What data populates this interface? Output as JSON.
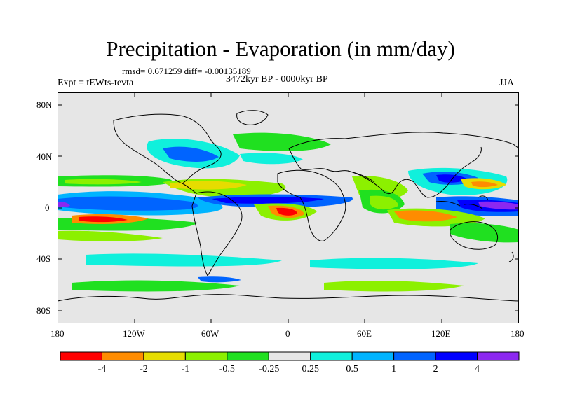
{
  "header": {
    "title": "Precipitation - Evaporation (in mm/day)",
    "stats": "rmsd= 0.671259 diff= -0.00135189",
    "experiment": "Expt = tEWts-tevta",
    "period": "3472kyr BP - 0000kyr BP",
    "season": "JJA"
  },
  "axes": {
    "lat_labels": [
      "80N",
      "40N",
      "0",
      "40S",
      "80S"
    ],
    "lon_labels": [
      "180",
      "120W",
      "60W",
      "0",
      "60E",
      "120E",
      "180"
    ]
  },
  "colorbar": {
    "colors": [
      "#ff0000",
      "#ff8c00",
      "#e6dc00",
      "#8cf000",
      "#20e020",
      "#e6e6e6",
      "#10f0dc",
      "#00b4ff",
      "#0064ff",
      "#0000ff",
      "#8c28f0"
    ],
    "labels": [
      "-4",
      "-2",
      "-1",
      "-0.5",
      "-0.25",
      "0.25",
      "0.5",
      "1",
      "2",
      "4"
    ]
  },
  "map_colors": {
    "background": "#e6e6e6",
    "red": "#ff0000",
    "orange": "#ff8c00",
    "yellow": "#e6dc00",
    "lightgreen": "#8cf000",
    "green": "#20e020",
    "cyan": "#10f0dc",
    "lightblue": "#00b4ff",
    "blue": "#0064ff",
    "darkblue": "#0000ff",
    "purple": "#8c28f0"
  }
}
